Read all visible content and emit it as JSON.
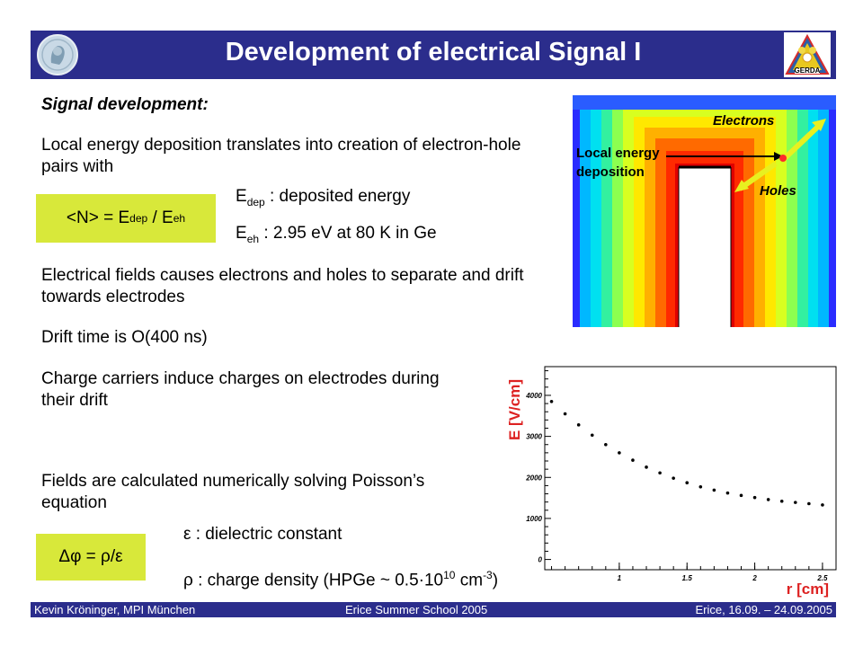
{
  "header": {
    "title": "Development of electrical Signal I"
  },
  "section_title": "Signal development:",
  "para1": "Local energy deposition translates into creation of electron-hole pairs with",
  "formula1": {
    "lhs": "<N> = E",
    "sub1": "dep",
    "mid": " / E",
    "sub2": "eh"
  },
  "def1": {
    "sym": "E",
    "sub": "dep",
    "text": " : deposited energy"
  },
  "def2": {
    "sym": "E",
    "sub": "eh",
    "text": " : 2.95 eV at 80 K in Ge"
  },
  "para2": "Electrical fields causes electrons and holes to separate and drift towards electrodes",
  "para3": "Drift time is O(400 ns)",
  "para4": "Charge carriers induce charges on electrodes during their drift",
  "para5": "Fields are calculated numerically solving Poisson’s equation",
  "formula2": "Δφ = ρ/ε",
  "def3": "ε : dielectric constant",
  "def4": {
    "pre": "ρ : charge density (HPGe ~ 0.5·10",
    "sup1": "10",
    "mid": " cm",
    "sup2": "-3",
    "post": ")"
  },
  "field_map": {
    "label_electrons": "Electrons",
    "label_holes": "Holes",
    "label_deposition": "Local energy deposition"
  },
  "chart_data": {
    "type": "scatter",
    "xlabel": "r [cm]",
    "ylabel": "E [V/cm]",
    "xlim": [
      0.45,
      2.6
    ],
    "ylim": [
      -250,
      4700
    ],
    "x_ticks": [
      "1",
      "1.5",
      "2",
      "2.5"
    ],
    "y_ticks": [
      "0",
      "1000",
      "2000",
      "3000",
      "4000"
    ],
    "x": [
      0.5,
      0.6,
      0.7,
      0.8,
      0.9,
      1.0,
      1.1,
      1.2,
      1.3,
      1.4,
      1.5,
      1.6,
      1.7,
      1.8,
      1.9,
      2.0,
      2.1,
      2.2,
      2.3,
      2.4,
      2.5
    ],
    "y": [
      3850,
      3550,
      3280,
      3030,
      2800,
      2600,
      2420,
      2250,
      2110,
      1980,
      1870,
      1770,
      1690,
      1620,
      1560,
      1510,
      1460,
      1420,
      1390,
      1360,
      1330
    ],
    "color": "#000000"
  },
  "footer": {
    "left": "Kevin Kröninger, MPI München",
    "center": "Erice Summer School 2005",
    "right": "Erice, 16.09. – 24.09.2005"
  },
  "colors": {
    "header_bg": "#2b2d8c",
    "box_bg": "#d8e83a",
    "axis_label": "#dd2222"
  }
}
